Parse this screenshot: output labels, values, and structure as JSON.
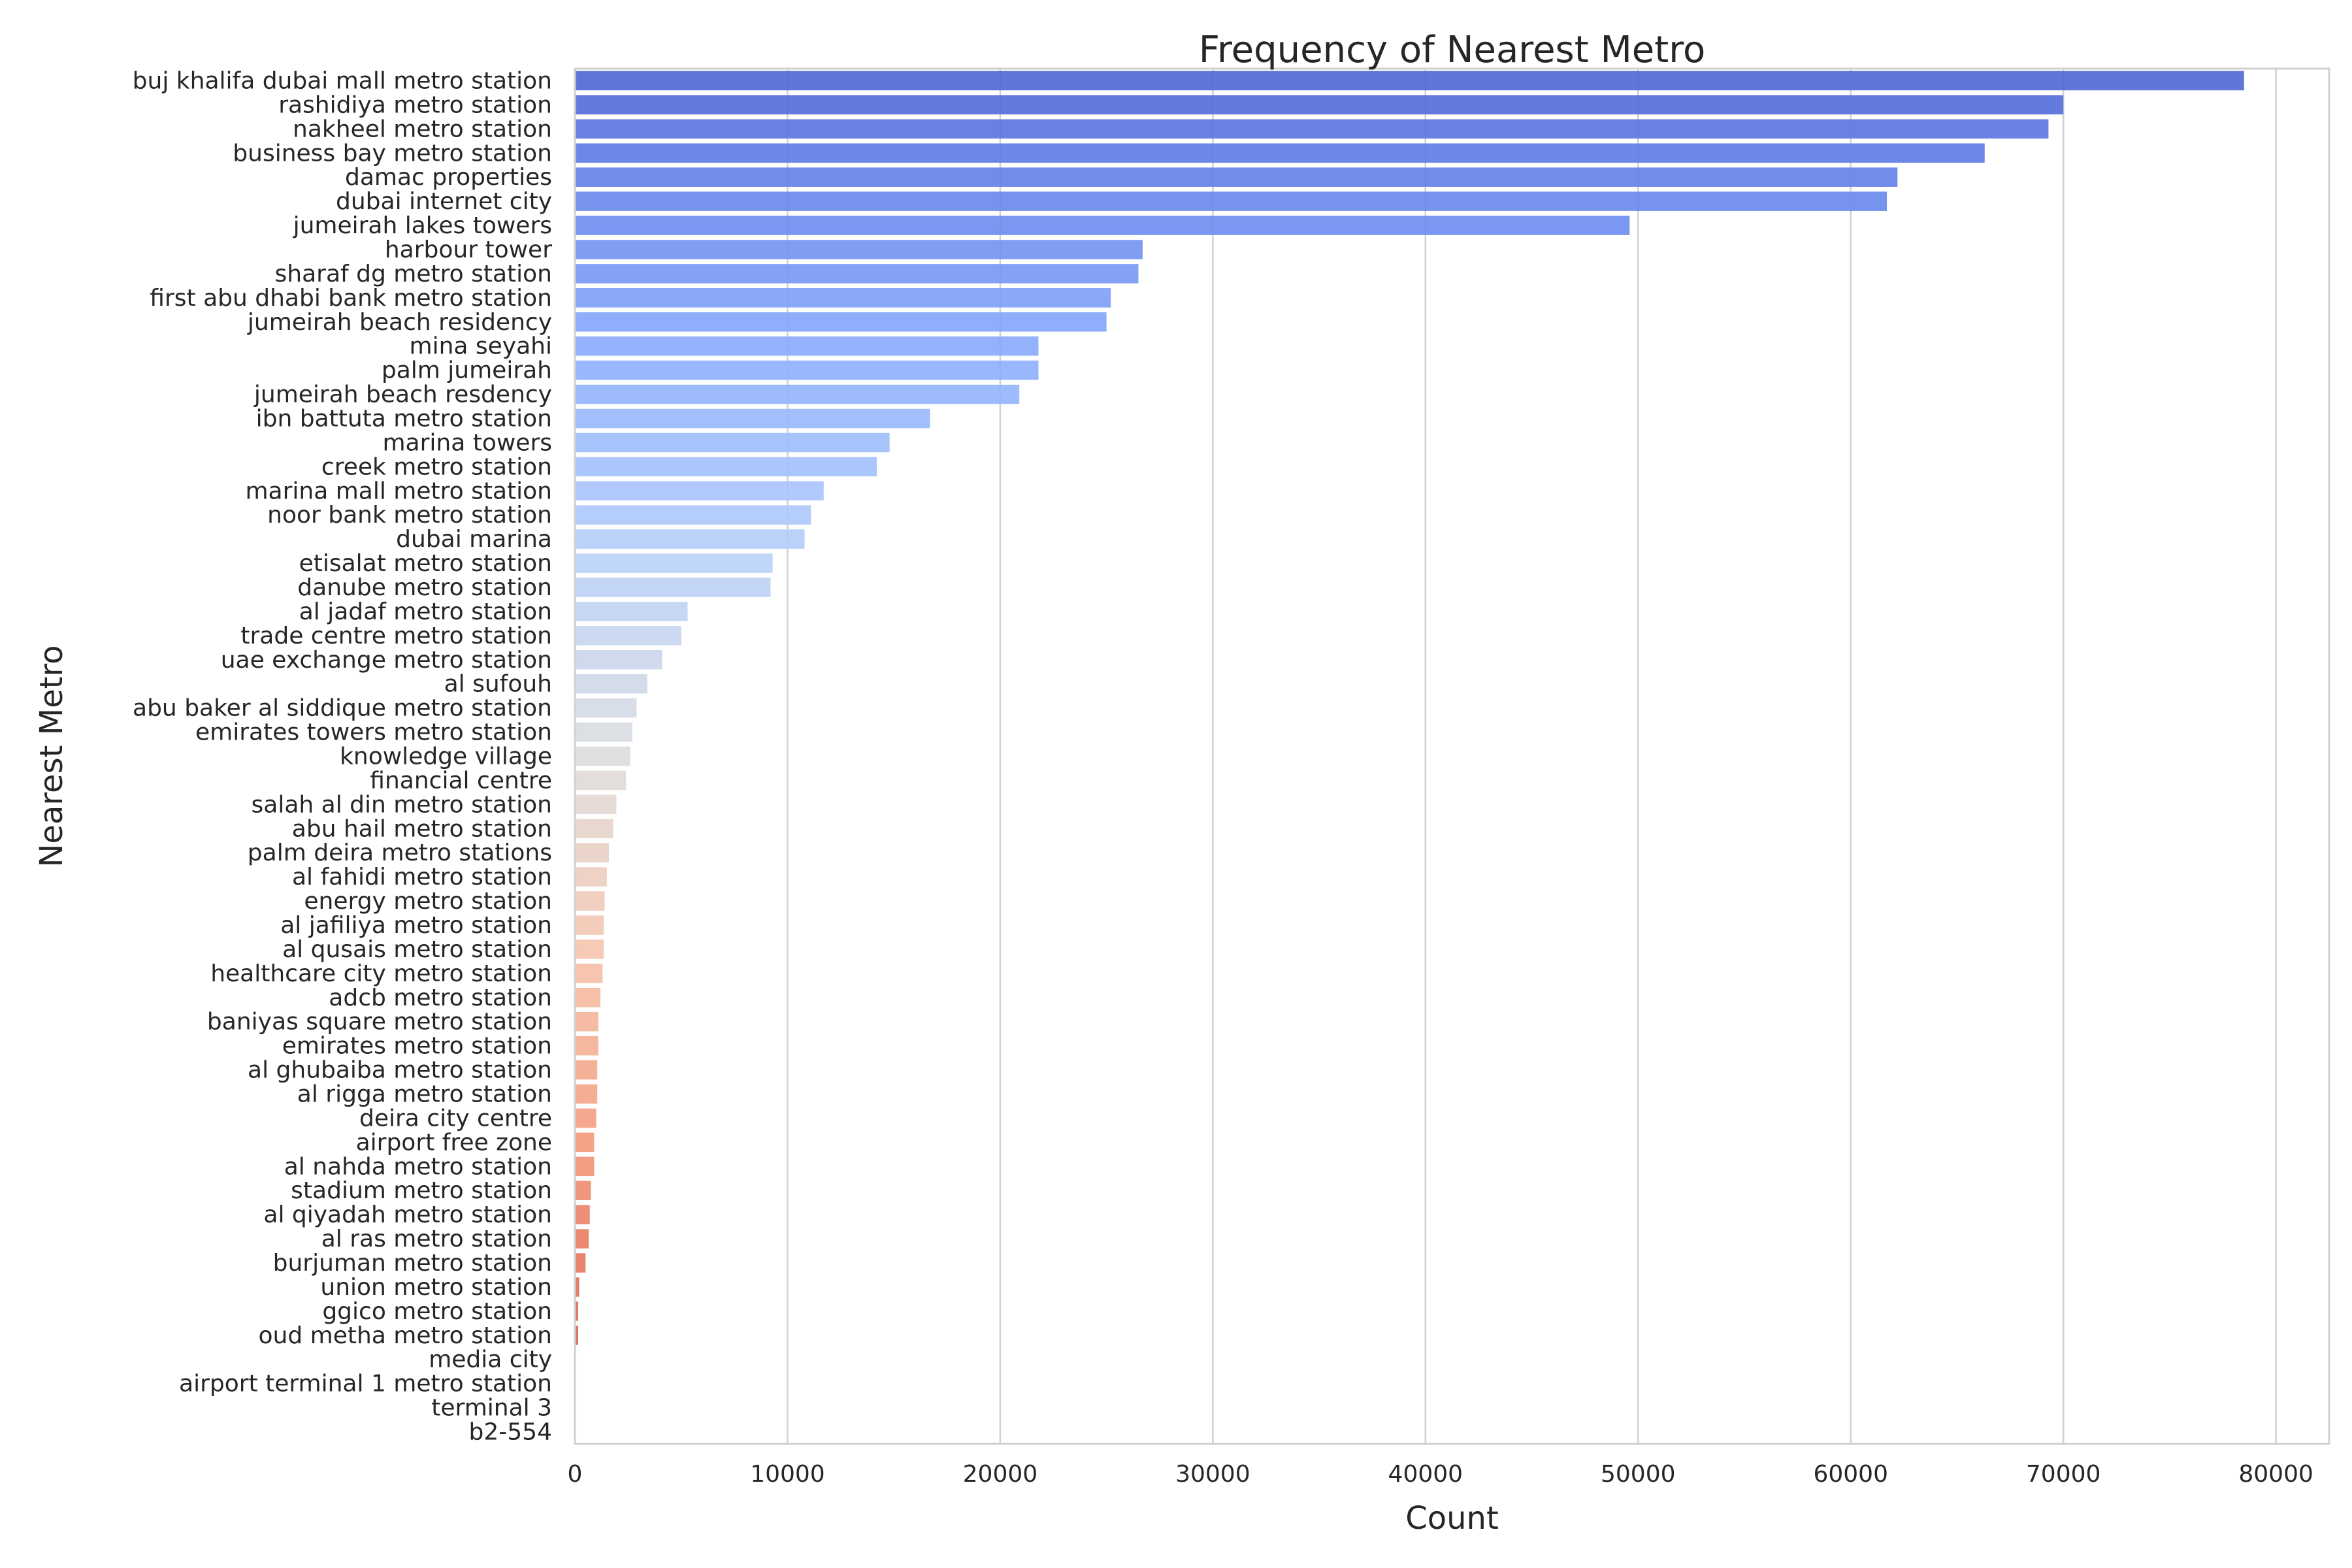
{
  "chart_data": {
    "type": "bar",
    "orientation": "horizontal",
    "title": "Frequency of Nearest Metro",
    "xlabel": "Count",
    "ylabel": "Nearest Metro",
    "xlim": [
      0,
      82500
    ],
    "xticks": [
      0,
      10000,
      20000,
      30000,
      40000,
      50000,
      60000,
      70000,
      80000
    ],
    "grid": "vertical",
    "palette": "coolwarm",
    "categories": [
      "buj khalifa dubai mall metro station",
      "rashidiya metro station",
      "nakheel metro station",
      "business bay metro station",
      "damac properties",
      "dubai internet city",
      "jumeirah lakes towers",
      "harbour tower",
      "sharaf dg metro station",
      "first abu dhabi bank metro station",
      "jumeirah beach residency",
      "mina seyahi",
      "palm jumeirah",
      "jumeirah beach resdency",
      "ibn battuta metro station",
      "marina towers",
      "creek metro station",
      "marina mall metro station",
      "noor bank metro station",
      "dubai marina",
      "etisalat metro station",
      "danube metro station",
      "al jadaf metro station",
      "trade centre metro station",
      "uae exchange metro station",
      "al sufouh",
      "abu baker al siddique metro station",
      "emirates towers metro station",
      "knowledge village",
      "financial centre",
      "salah al din metro station",
      "abu hail metro station",
      "palm deira metro stations",
      "al fahidi metro station",
      "energy metro station",
      "al jafiliya metro station",
      "al qusais metro station",
      "healthcare city metro station",
      "adcb metro station",
      "baniyas square metro station",
      "emirates metro station",
      "al ghubaiba metro station",
      "al rigga metro station",
      "deira city centre",
      "airport free zone",
      "al nahda metro station",
      "stadium metro station",
      "al qiyadah metro station",
      "al ras metro station",
      "burjuman metro station",
      "union metro station",
      "ggico metro station",
      "oud metha metro station",
      "media city",
      "airport terminal 1 metro station",
      "terminal 3",
      "b2-554"
    ],
    "values": [
      78500,
      70000,
      69300,
      66300,
      62200,
      61700,
      49600,
      26700,
      26500,
      25200,
      25000,
      21800,
      21800,
      20900,
      16700,
      14800,
      14200,
      11700,
      11100,
      10800,
      9300,
      9200,
      5300,
      5000,
      4100,
      3400,
      2900,
      2700,
      2600,
      2400,
      1950,
      1800,
      1600,
      1500,
      1400,
      1350,
      1350,
      1300,
      1200,
      1100,
      1100,
      1050,
      1050,
      1000,
      900,
      900,
      750,
      700,
      650,
      500,
      200,
      150,
      150,
      30,
      20,
      15,
      10
    ]
  }
}
